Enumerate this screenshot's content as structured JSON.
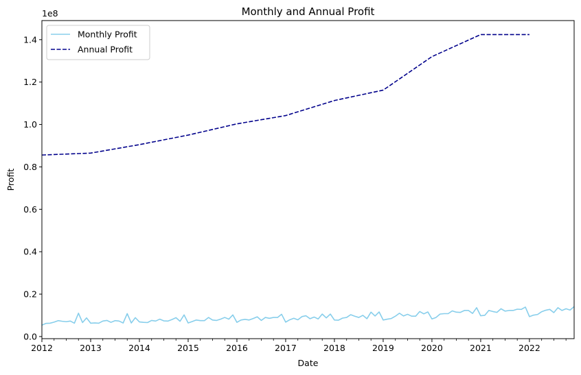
{
  "chart_data": {
    "type": "line",
    "title": "Monthly and Annual Profit",
    "xlabel": "Date",
    "ylabel": "Profit",
    "y_offset_label": "1e8",
    "xlim": [
      "2012-01",
      "2022-12"
    ],
    "ylim": [
      -1000000,
      149000000
    ],
    "x_ticks": [
      "2012",
      "2013",
      "2014",
      "2015",
      "2016",
      "2017",
      "2018",
      "2019",
      "2020",
      "2021",
      "2022"
    ],
    "y_ticks": [
      "0.0",
      "0.2",
      "0.4",
      "0.6",
      "0.8",
      "1.0",
      "1.2",
      "1.4"
    ],
    "y_tick_values": [
      0,
      20000000,
      40000000,
      60000000,
      80000000,
      100000000,
      120000000,
      140000000
    ],
    "legend_position": "top-left",
    "grid": false,
    "series": [
      {
        "name": "Monthly Profit",
        "color": "#87ceeb",
        "style": "solid",
        "x_start": "2012-01",
        "x_step": "1 month",
        "values": [
          5400000,
          6200000,
          6300000,
          6800000,
          7500000,
          7200000,
          7000000,
          7300000,
          6300000,
          11000000,
          6600000,
          8800000,
          6300000,
          6400000,
          6300000,
          7300000,
          7600000,
          6700000,
          7500000,
          7300000,
          6400000,
          10800000,
          6400000,
          8900000,
          6900000,
          6700000,
          6600000,
          7600000,
          7300000,
          8200000,
          7400000,
          7300000,
          8000000,
          8900000,
          7200000,
          10200000,
          6400000,
          7100000,
          7800000,
          7500000,
          7500000,
          9000000,
          7800000,
          7600000,
          8200000,
          9000000,
          8200000,
          10200000,
          6700000,
          7800000,
          8100000,
          7800000,
          8500000,
          9300000,
          7600000,
          9000000,
          8600000,
          9000000,
          9000000,
          10500000,
          6800000,
          7900000,
          8600000,
          7900000,
          9400000,
          9800000,
          8400000,
          9200000,
          8300000,
          10600000,
          8800000,
          10600000,
          7800000,
          7700000,
          8700000,
          9000000,
          10300000,
          9600000,
          9000000,
          10000000,
          8400000,
          11500000,
          9700000,
          11600000,
          7800000,
          8200000,
          8500000,
          9600000,
          11000000,
          9700000,
          10500000,
          9600000,
          9600000,
          11800000,
          10700000,
          11600000,
          8300000,
          9000000,
          10600000,
          10800000,
          10800000,
          12100000,
          11500000,
          11400000,
          12300000,
          12300000,
          10900000,
          13600000,
          9800000,
          10000000,
          12300000,
          11800000,
          11400000,
          13100000,
          12000000,
          12300000,
          12300000,
          12900000,
          12800000,
          13900000,
          9400000,
          10100000,
          10400000,
          11700000,
          12400000,
          12800000,
          11300000,
          13600000,
          12300000,
          13100000,
          12500000,
          14100000
        ]
      },
      {
        "name": "Annual Profit",
        "color": "#00008b",
        "style": "dashed",
        "x": [
          "2012",
          "2013",
          "2014",
          "2015",
          "2016",
          "2017",
          "2018",
          "2019",
          "2020",
          "2021",
          "2022"
        ],
        "values": [
          85600000,
          86500000,
          90500000,
          95000000,
          100300000,
          104200000,
          111300000,
          116200000,
          132000000,
          142400000,
          142400000
        ]
      }
    ]
  }
}
